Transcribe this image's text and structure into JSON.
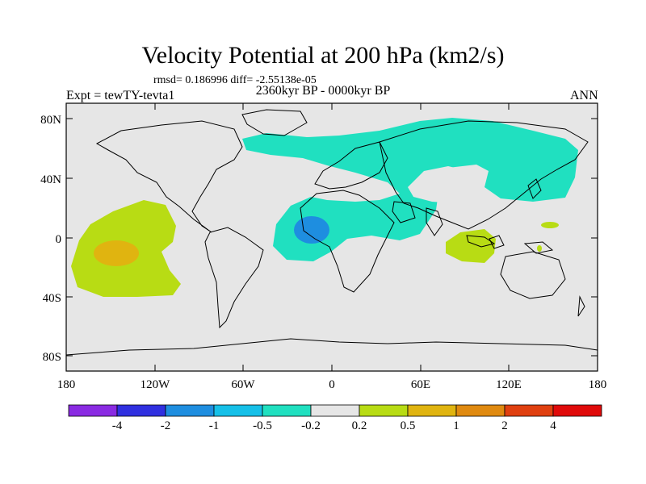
{
  "header": {
    "title": "Velocity Potential at 200 hPa (km2/s)",
    "stats": "rmsd= 0.186996 diff= -2.55138e-05",
    "subtitle": "2360kyr BP - 0000kyr BP",
    "expt": "Expt = tewTY-tevta1",
    "season": "ANN"
  },
  "axes": {
    "lat_labels": [
      "80N",
      "40N",
      "0",
      "40S",
      "80S"
    ],
    "lon_labels": [
      "180",
      "120W",
      "60W",
      "0",
      "60E",
      "120E",
      "180"
    ]
  },
  "colorbar": {
    "colors": [
      "#8a2be2",
      "#3030e0",
      "#1e8ee0",
      "#16c0e8",
      "#20e0c0",
      "#e6e6e6",
      "#b8dc14",
      "#e0b410",
      "#e08a10",
      "#e04010",
      "#e00a0a"
    ],
    "labels": [
      "-4",
      "-2",
      "-1",
      "-0.5",
      "-0.2",
      "0.2",
      "0.5",
      "1",
      "2",
      "4"
    ]
  },
  "colors": {
    "background": "#e6e6e6",
    "negative_region": "#20e0c0",
    "stronger_negative": "#1e8ee0",
    "positive_region": "#b8dc14",
    "stronger_positive": "#e0b410"
  }
}
